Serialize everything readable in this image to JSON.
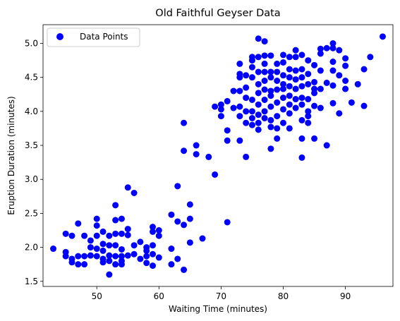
{
  "chart_data": {
    "type": "scatter",
    "title": "Old Faithful Geyser Data",
    "xlabel": "Waiting Time (minutes)",
    "ylabel": "Eruption Duration (minutes)",
    "xlim": [
      41.35,
      97.65
    ],
    "ylim": [
      1.425,
      5.275
    ],
    "xticks": [
      50,
      60,
      70,
      80,
      90
    ],
    "yticks": [
      1.5,
      2.0,
      2.5,
      3.0,
      3.5,
      4.0,
      4.5,
      5.0
    ],
    "xtick_labels": [
      "50",
      "60",
      "70",
      "80",
      "90"
    ],
    "ytick_labels": [
      "1.5",
      "2.0",
      "2.5",
      "3.0",
      "3.5",
      "4.0",
      "4.5",
      "5.0"
    ],
    "grid": false,
    "legend_position": "upper-left",
    "series": [
      {
        "name": "Data Points",
        "color": "#0000ff",
        "points": [
          [
            43,
            1.98
          ],
          [
            45,
            2.2
          ],
          [
            45,
            1.93
          ],
          [
            45,
            1.87
          ],
          [
            46,
            2.17
          ],
          [
            46,
            1.83
          ],
          [
            46,
            1.78
          ],
          [
            47,
            2.35
          ],
          [
            47,
            1.87
          ],
          [
            47,
            1.75
          ],
          [
            48,
            2.17
          ],
          [
            48,
            1.87
          ],
          [
            48,
            1.75
          ],
          [
            49,
            2.0
          ],
          [
            49,
            2.1
          ],
          [
            49,
            1.88
          ],
          [
            50,
            2.42
          ],
          [
            50,
            2.32
          ],
          [
            50,
            2.17
          ],
          [
            50,
            1.98
          ],
          [
            50,
            1.87
          ],
          [
            51,
            2.23
          ],
          [
            51,
            2.05
          ],
          [
            51,
            1.95
          ],
          [
            51,
            1.83
          ],
          [
            51,
            1.78
          ],
          [
            52,
            2.17
          ],
          [
            52,
            2.03
          ],
          [
            52,
            1.88
          ],
          [
            52,
            1.8
          ],
          [
            52,
            1.6
          ],
          [
            53,
            2.62
          ],
          [
            53,
            2.4
          ],
          [
            53,
            2.2
          ],
          [
            53,
            2.03
          ],
          [
            53,
            1.87
          ],
          [
            53,
            1.75
          ],
          [
            54,
            2.42
          ],
          [
            54,
            2.2
          ],
          [
            54,
            1.97
          ],
          [
            54,
            1.87
          ],
          [
            54,
            1.8
          ],
          [
            54,
            1.75
          ],
          [
            55,
            2.88
          ],
          [
            55,
            2.27
          ],
          [
            55,
            2.18
          ],
          [
            55,
            1.88
          ],
          [
            56,
            2.8
          ],
          [
            56,
            2.03
          ],
          [
            56,
            1.9
          ],
          [
            57,
            2.08
          ],
          [
            57,
            1.83
          ],
          [
            58,
            2.0
          ],
          [
            58,
            1.95
          ],
          [
            58,
            1.87
          ],
          [
            58,
            1.77
          ],
          [
            59,
            2.3
          ],
          [
            59,
            2.23
          ],
          [
            59,
            2.03
          ],
          [
            59,
            1.9
          ],
          [
            59,
            1.73
          ],
          [
            60,
            2.25
          ],
          [
            60,
            2.17
          ],
          [
            60,
            1.85
          ],
          [
            62,
            2.48
          ],
          [
            62,
            1.98
          ],
          [
            62,
            1.75
          ],
          [
            63,
            2.9
          ],
          [
            63,
            2.38
          ],
          [
            63,
            1.83
          ],
          [
            64,
            3.83
          ],
          [
            64,
            3.42
          ],
          [
            64,
            2.33
          ],
          [
            64,
            1.67
          ],
          [
            65,
            2.63
          ],
          [
            65,
            2.42
          ],
          [
            65,
            2.07
          ],
          [
            66,
            3.5
          ],
          [
            66,
            3.37
          ],
          [
            67,
            2.13
          ],
          [
            68,
            3.33
          ],
          [
            69,
            4.07
          ],
          [
            69,
            3.07
          ],
          [
            70,
            4.1
          ],
          [
            70,
            4.03
          ],
          [
            70,
            3.93
          ],
          [
            71,
            4.15
          ],
          [
            71,
            3.72
          ],
          [
            71,
            3.57
          ],
          [
            71,
            2.37
          ],
          [
            72,
            4.3
          ],
          [
            72,
            4.05
          ],
          [
            73,
            4.7
          ],
          [
            73,
            4.55
          ],
          [
            73,
            4.5
          ],
          [
            73,
            4.3
          ],
          [
            73,
            4.07
          ],
          [
            73,
            3.93
          ],
          [
            73,
            3.57
          ],
          [
            74,
            4.53
          ],
          [
            74,
            4.35
          ],
          [
            74,
            4.2
          ],
          [
            74,
            4.0
          ],
          [
            74,
            3.83
          ],
          [
            74,
            3.33
          ],
          [
            75,
            4.8
          ],
          [
            75,
            4.75
          ],
          [
            75,
            4.65
          ],
          [
            75,
            4.5
          ],
          [
            75,
            4.17
          ],
          [
            75,
            4.0
          ],
          [
            75,
            3.9
          ],
          [
            75,
            3.8
          ],
          [
            76,
            5.07
          ],
          [
            76,
            4.8
          ],
          [
            76,
            4.58
          ],
          [
            76,
            4.4
          ],
          [
            76,
            4.27
          ],
          [
            76,
            4.1
          ],
          [
            76,
            3.95
          ],
          [
            76,
            3.83
          ],
          [
            76,
            3.73
          ],
          [
            77,
            5.03
          ],
          [
            77,
            4.82
          ],
          [
            77,
            4.7
          ],
          [
            77,
            4.58
          ],
          [
            77,
            4.45
          ],
          [
            77,
            4.32
          ],
          [
            77,
            4.17
          ],
          [
            77,
            4.0
          ],
          [
            77,
            3.9
          ],
          [
            78,
            4.82
          ],
          [
            78,
            4.58
          ],
          [
            78,
            4.5
          ],
          [
            78,
            4.3
          ],
          [
            78,
            4.23
          ],
          [
            78,
            4.07
          ],
          [
            78,
            3.87
          ],
          [
            78,
            3.77
          ],
          [
            78,
            3.45
          ],
          [
            79,
            4.7
          ],
          [
            79,
            4.58
          ],
          [
            79,
            4.45
          ],
          [
            79,
            4.32
          ],
          [
            79,
            4.13
          ],
          [
            79,
            3.93
          ],
          [
            79,
            3.75
          ],
          [
            79,
            3.6
          ],
          [
            80,
            4.83
          ],
          [
            80,
            4.72
          ],
          [
            80,
            4.53
          ],
          [
            80,
            4.4
          ],
          [
            80,
            4.33
          ],
          [
            80,
            4.2
          ],
          [
            80,
            4.03
          ],
          [
            80,
            3.83
          ],
          [
            81,
            4.8
          ],
          [
            81,
            4.62
          ],
          [
            81,
            4.5
          ],
          [
            81,
            4.37
          ],
          [
            81,
            4.23
          ],
          [
            81,
            4.1
          ],
          [
            81,
            3.97
          ],
          [
            81,
            3.75
          ],
          [
            82,
            4.9
          ],
          [
            82,
            4.8
          ],
          [
            82,
            4.6
          ],
          [
            82,
            4.47
          ],
          [
            82,
            4.33
          ],
          [
            82,
            4.18
          ],
          [
            82,
            4.05
          ],
          [
            83,
            4.83
          ],
          [
            83,
            4.62
          ],
          [
            83,
            4.5
          ],
          [
            83,
            4.37
          ],
          [
            83,
            4.2
          ],
          [
            83,
            4.1
          ],
          [
            83,
            3.87
          ],
          [
            83,
            3.6
          ],
          [
            83,
            3.32
          ],
          [
            84,
            4.75
          ],
          [
            84,
            4.55
          ],
          [
            84,
            4.4
          ],
          [
            84,
            4.18
          ],
          [
            84,
            4.0
          ],
          [
            84,
            3.93
          ],
          [
            84,
            3.83
          ],
          [
            85,
            4.68
          ],
          [
            85,
            4.43
          ],
          [
            85,
            4.33
          ],
          [
            85,
            4.27
          ],
          [
            85,
            4.08
          ],
          [
            85,
            3.6
          ],
          [
            86,
            4.92
          ],
          [
            86,
            4.85
          ],
          [
            86,
            4.6
          ],
          [
            86,
            4.33
          ],
          [
            86,
            4.05
          ],
          [
            87,
            4.93
          ],
          [
            87,
            4.42
          ],
          [
            87,
            3.5
          ],
          [
            88,
            5.0
          ],
          [
            88,
            4.93
          ],
          [
            88,
            4.73
          ],
          [
            88,
            4.6
          ],
          [
            88,
            4.38
          ],
          [
            88,
            4.12
          ],
          [
            89,
            4.9
          ],
          [
            89,
            4.53
          ],
          [
            89,
            3.97
          ],
          [
            90,
            4.78
          ],
          [
            90,
            4.67
          ],
          [
            90,
            4.45
          ],
          [
            90,
            4.33
          ],
          [
            91,
            4.13
          ],
          [
            92,
            4.4
          ],
          [
            93,
            4.62
          ],
          [
            93,
            4.08
          ],
          [
            94,
            4.8
          ],
          [
            96,
            5.1
          ]
        ]
      }
    ]
  }
}
